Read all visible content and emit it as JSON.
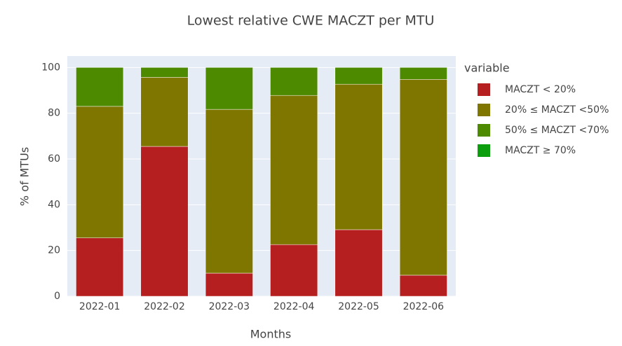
{
  "chart_data": {
    "type": "stacked_bar",
    "title": "Lowest relative CWE MACZT per MTU",
    "x_label": "Months",
    "y_label": "% of MTUs",
    "legend_title": "variable",
    "categories": [
      "2022-01",
      "2022-02",
      "2022-03",
      "2022-04",
      "2022-05",
      "2022-06"
    ],
    "series": [
      {
        "name": "MACZT < 20%",
        "color": "#b51f1f",
        "values": [
          25.5,
          65.5,
          10.1,
          22.6,
          29.1,
          9.2
        ]
      },
      {
        "name": "20% ≤ MACZT <50%",
        "color": "#7f7600",
        "values": [
          57.5,
          30.2,
          71.6,
          65.2,
          63.6,
          85.6
        ]
      },
      {
        "name": "50% ≤ MACZT <70%",
        "color": "#4d8a00",
        "values": [
          17,
          4.3,
          18.3,
          12.2,
          7.3,
          5.2
        ]
      },
      {
        "name": "MACZT ≥ 70%",
        "color": "#0d9e0d",
        "values": [
          0,
          0,
          0,
          0,
          0,
          0
        ]
      }
    ],
    "ylim": [
      0,
      105
    ],
    "yticks": [
      0,
      20,
      40,
      60,
      80,
      100
    ],
    "grid": true,
    "legend": "right"
  }
}
